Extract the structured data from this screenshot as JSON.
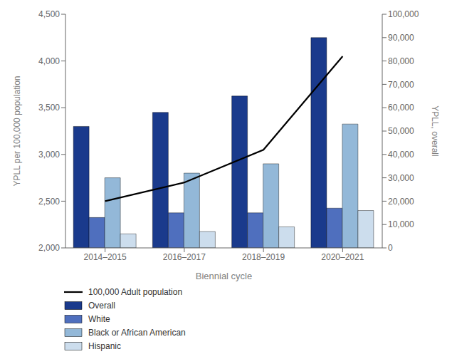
{
  "chart_data": {
    "type": "bar",
    "xlabel": "Biennial cycle",
    "ylabel": "YPLL per 100,000 population",
    "y2label": "YPLL, overall",
    "categories": [
      "2014–2015",
      "2016–2017",
      "2018–2019",
      "2020–2021"
    ],
    "series": [
      {
        "name": "100,000 Adult population",
        "type": "line",
        "axis": "y2",
        "color": "#000000",
        "values": [
          20000,
          28000,
          42000,
          82000
        ]
      },
      {
        "name": "Overall",
        "type": "bar",
        "color": "#1a3a8c",
        "values": [
          3300,
          3450,
          3625,
          4250
        ]
      },
      {
        "name": "White",
        "type": "bar",
        "color": "#4f6fbe",
        "values": [
          2325,
          2375,
          2375,
          2425
        ]
      },
      {
        "name": "Black or African American",
        "type": "bar",
        "color": "#93b8d8",
        "values": [
          2750,
          2800,
          2900,
          3325
        ]
      },
      {
        "name": "Hispanic",
        "type": "bar",
        "color": "#ccdded",
        "values": [
          2150,
          2175,
          2225,
          2400
        ]
      }
    ],
    "ylim": [
      2000,
      4500
    ],
    "yticks": [
      {
        "value": 2000,
        "label": "2,000"
      },
      {
        "value": 2500,
        "label": "2,500"
      },
      {
        "value": 3000,
        "label": "3,000"
      },
      {
        "value": 3500,
        "label": "3,500"
      },
      {
        "value": 4000,
        "label": "4,000"
      },
      {
        "value": 4500,
        "label": "4,500"
      }
    ],
    "y2lim": [
      0,
      100000
    ],
    "y2ticks": [
      0,
      {
        "value": 10000,
        "label": "10,000"
      },
      {
        "value": 20000,
        "label": "20,000"
      },
      {
        "value": 30000,
        "label": "30,000"
      },
      {
        "value": 40000,
        "label": "40,000"
      },
      {
        "value": 50000,
        "label": "50,000"
      },
      {
        "value": 60000,
        "label": "60,000"
      },
      {
        "value": 70000,
        "label": "70,000"
      },
      {
        "value": 80000,
        "label": "80,000"
      },
      {
        "value": 90000,
        "label": "90,000"
      },
      {
        "value": 100000,
        "label": "100,000"
      }
    ],
    "grid": false,
    "legend": "lower left"
  }
}
